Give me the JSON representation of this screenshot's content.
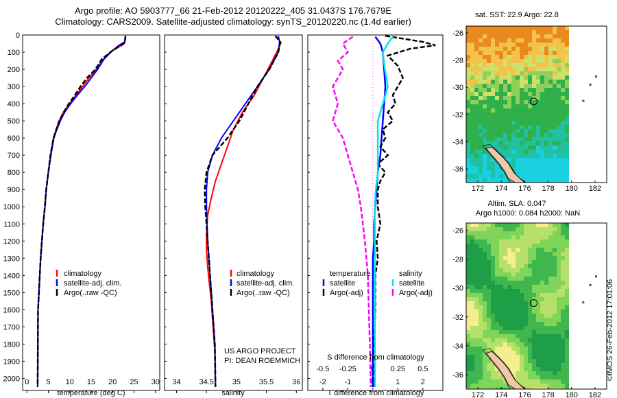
{
  "header": {
    "title_line1": "Argo profile: AO 5903777_66 21-Feb-2012 20120222_405 31.0437S 176.7679E",
    "title_line2": "Climatology: CARS2009. Satellite-adjusted climatology: synTS_20120220.nc (1.4d earlier)"
  },
  "colors": {
    "climatology": "#ff0000",
    "satellite": "#0000ff",
    "argo": "#000000",
    "salinity_satellite": "#00e5ee",
    "salinity_argo": "#ff00ff"
  },
  "chart_data": [
    {
      "type": "line",
      "name": "temperature-profile",
      "xlabel": "temperature (deg C)",
      "xlim": [
        -1,
        31
      ],
      "xticks": [
        "0",
        "5",
        "10",
        "15",
        "20",
        "25",
        "30"
      ],
      "ylim": [
        2070,
        0
      ],
      "yticks": [
        "0",
        "100",
        "200",
        "300",
        "400",
        "500",
        "600",
        "700",
        "800",
        "900",
        "1000",
        "1100",
        "1200",
        "1300",
        "1400",
        "1500",
        "1600",
        "1700",
        "1800",
        "1900",
        "2000"
      ],
      "legend": [
        "climatology",
        "satellite-adj. clim.",
        "Argo(..raw -QC)"
      ],
      "series": [
        {
          "name": "climatology",
          "x": [
            23.0,
            22.5,
            21.0,
            19.5,
            17.5,
            16.2,
            14.5,
            13.0,
            11.5,
            10.0,
            8.5,
            7.5,
            6.8,
            6.2,
            5.5,
            5.0,
            4.5,
            4.2,
            3.8,
            3.5,
            3.2,
            3.0,
            2.8,
            2.6,
            2.5
          ],
          "y": [
            40,
            55,
            75,
            100,
            150,
            200,
            250,
            300,
            350,
            400,
            450,
            500,
            550,
            600,
            700,
            800,
            900,
            1000,
            1100,
            1200,
            1300,
            1400,
            1500,
            1600,
            2050
          ]
        },
        {
          "name": "satellite-adj. clim.",
          "x": [
            23.0,
            22.8,
            21.5,
            20.0,
            18.0,
            16.5,
            15.0,
            13.5,
            11.8,
            10.2,
            8.8,
            7.8,
            7.0,
            6.3,
            5.6,
            5.0,
            4.5,
            4.2,
            3.8,
            3.5,
            3.2,
            3.0,
            2.8,
            2.6,
            2.5
          ],
          "y": [
            5,
            40,
            60,
            90,
            140,
            200,
            250,
            300,
            350,
            400,
            450,
            500,
            550,
            600,
            700,
            800,
            900,
            1000,
            1100,
            1200,
            1300,
            1400,
            1500,
            1600,
            2050
          ]
        },
        {
          "name": "Argo(..raw -QC)",
          "x": [
            23.0,
            22.9,
            22.0,
            20.0,
            17.5,
            16.0,
            14.0,
            12.5,
            11.2,
            9.8,
            8.6,
            7.6,
            6.9,
            6.2,
            5.5,
            5.0,
            4.5,
            4.2,
            3.8,
            3.5,
            3.2,
            3.0,
            2.8,
            2.6,
            2.5
          ],
          "y": [
            5,
            40,
            60,
            90,
            140,
            200,
            250,
            300,
            350,
            400,
            450,
            500,
            550,
            600,
            700,
            800,
            900,
            1000,
            1100,
            1200,
            1300,
            1400,
            1500,
            1600,
            2050
          ]
        }
      ]
    },
    {
      "type": "line",
      "name": "salinity-profile",
      "xlabel": "salinity",
      "xlim": [
        33.8,
        36.1
      ],
      "xticks": [
        "34",
        "34.5",
        "35",
        "35.5",
        "36"
      ],
      "ylim": [
        2070,
        0
      ],
      "legend": [
        "climatology",
        "satellite-adj. clim.",
        "Argo(..raw -QC)"
      ],
      "annotation": [
        "US ARGO PROJECT",
        "PI: DEAN ROEMMICH"
      ],
      "series": [
        {
          "name": "climatology",
          "x": [
            35.75,
            35.7,
            35.6,
            35.45,
            35.3,
            35.1,
            34.95,
            34.85,
            34.75,
            34.65,
            34.58,
            34.52,
            34.5,
            34.5,
            34.52,
            34.55,
            34.58,
            34.6,
            34.62,
            34.64,
            34.65
          ],
          "y": [
            40,
            80,
            150,
            250,
            350,
            450,
            550,
            650,
            750,
            850,
            950,
            1050,
            1150,
            1250,
            1350,
            1450,
            1550,
            1650,
            1750,
            1850,
            2050
          ]
        },
        {
          "name": "satellite-adj. clim.",
          "x": [
            35.7,
            35.72,
            35.7,
            35.55,
            35.35,
            35.15,
            34.95,
            34.75,
            34.6,
            34.52,
            34.5,
            34.5,
            34.51,
            34.52,
            34.54,
            34.56,
            34.58,
            34.6,
            34.62,
            34.64,
            34.65
          ],
          "y": [
            5,
            40,
            100,
            200,
            300,
            400,
            500,
            600,
            700,
            800,
            900,
            1000,
            1100,
            1200,
            1300,
            1400,
            1500,
            1600,
            1700,
            1800,
            2050
          ]
        },
        {
          "name": "Argo(..raw -QC)",
          "x": [
            35.65,
            35.73,
            35.7,
            35.55,
            35.35,
            35.2,
            35.05,
            34.85,
            34.6,
            34.5,
            34.47,
            34.48,
            34.5,
            34.52,
            34.54,
            34.56,
            34.58,
            34.6,
            34.62,
            34.64,
            34.65
          ],
          "y": [
            5,
            40,
            100,
            200,
            300,
            400,
            500,
            600,
            700,
            800,
            900,
            1000,
            1100,
            1200,
            1300,
            1400,
            1500,
            1600,
            1700,
            1800,
            2050
          ]
        }
      ]
    },
    {
      "type": "line",
      "name": "difference-profile",
      "xlabel": "T difference from climatology",
      "xlabel_secondary": "S difference from climatology",
      "xlim": [
        -2.6,
        2.8
      ],
      "xticks": [
        "-2",
        "-1",
        "0",
        "1",
        "2"
      ],
      "xticks_secondary": [
        "-0.5",
        "-0.25",
        "0",
        "0.25",
        "0.5"
      ],
      "ylim": [
        2070,
        0
      ],
      "legend_temperature": [
        "temperature",
        "satellite",
        "Argo(-adj)"
      ],
      "legend_salinity": [
        "salinity",
        "satellite",
        "Argo(-adj)"
      ],
      "series": [
        {
          "name": "temperature satellite",
          "x": [
            0.1,
            0.3,
            0.4,
            0.45,
            0.5,
            0.45,
            0.4,
            0.35,
            0.3,
            0.2,
            0.15,
            0.1,
            0.05,
            0.05,
            0.0,
            0.0,
            0.0,
            0.0,
            0.0,
            0.0,
            0.0
          ],
          "y": [
            10,
            50,
            100,
            200,
            300,
            400,
            500,
            600,
            700,
            800,
            900,
            1000,
            1100,
            1200,
            1300,
            1400,
            1500,
            1600,
            1700,
            1800,
            2050
          ]
        },
        {
          "name": "temperature Argo(-adj)",
          "x": [
            0.5,
            2.0,
            2.5,
            1.5,
            0.6,
            1.0,
            1.2,
            1.0,
            0.8,
            0.9,
            0.6,
            0.8,
            0.4,
            0.5,
            0.3,
            0.6,
            0.2,
            0.5,
            0.3,
            0.2,
            0.2,
            0.3,
            0.15,
            0.2,
            0.1,
            0.1,
            0.1,
            0.05,
            0.05
          ],
          "y": [
            5,
            40,
            60,
            80,
            120,
            180,
            250,
            300,
            350,
            400,
            450,
            500,
            550,
            600,
            650,
            700,
            750,
            800,
            850,
            900,
            1000,
            1100,
            1200,
            1300,
            1400,
            1500,
            1600,
            1800,
            2050
          ]
        },
        {
          "name": "salinity satellite",
          "x": [
            0.2,
            0.15,
            0.1,
            0.12,
            0.15,
            0.1,
            0.05,
            0.05,
            0.05,
            0.05,
            0.03,
            0.02,
            0.02,
            0.02,
            0.02,
            0.02,
            0.02
          ],
          "y": [
            10,
            50,
            100,
            200,
            300,
            400,
            500,
            600,
            700,
            800,
            900,
            1000,
            1200,
            1400,
            1600,
            1800,
            2050
          ]
        },
        {
          "name": "salinity Argo(-adj)",
          "x": [
            -0.2,
            -0.3,
            -0.25,
            -0.35,
            -0.3,
            -0.4,
            -0.35,
            -0.4,
            -0.3,
            -0.25,
            -0.2,
            -0.15,
            -0.12,
            -0.1,
            -0.08,
            -0.05,
            -0.04,
            -0.03,
            -0.02
          ],
          "y": [
            10,
            50,
            100,
            150,
            200,
            300,
            400,
            500,
            600,
            700,
            800,
            900,
            1000,
            1100,
            1200,
            1400,
            1600,
            1800,
            2050
          ]
        }
      ]
    },
    {
      "type": "heatmap",
      "name": "sst-map",
      "title": "sat. SST: 22.9  Argo: 22.8",
      "xlim": [
        171,
        183
      ],
      "ylim": [
        -37,
        -25.5
      ],
      "xticks": [
        "172",
        "174",
        "176",
        "178",
        "180",
        "182"
      ],
      "yticks": [
        "-26",
        "-28",
        "-30",
        "-32",
        "-34",
        "-36"
      ],
      "float_position": {
        "lon": 176.77,
        "lat": -31.04
      }
    },
    {
      "type": "heatmap",
      "name": "sla-map",
      "title_line1": "Altim. SLA: 0.047",
      "title_line2": "Argo h1000: 0.084 h2000: NaN",
      "xlim": [
        171,
        183
      ],
      "ylim": [
        -37,
        -25.5
      ],
      "xticks": [
        "172",
        "174",
        "176",
        "178",
        "180",
        "182"
      ],
      "yticks": [
        "-26",
        "-28",
        "-30",
        "-32",
        "-34",
        "-36"
      ],
      "float_position": {
        "lon": 176.77,
        "lat": -31.04
      }
    }
  ],
  "footer": {
    "credit": "©IMOS 26-Feb-2012 17:01:06"
  }
}
